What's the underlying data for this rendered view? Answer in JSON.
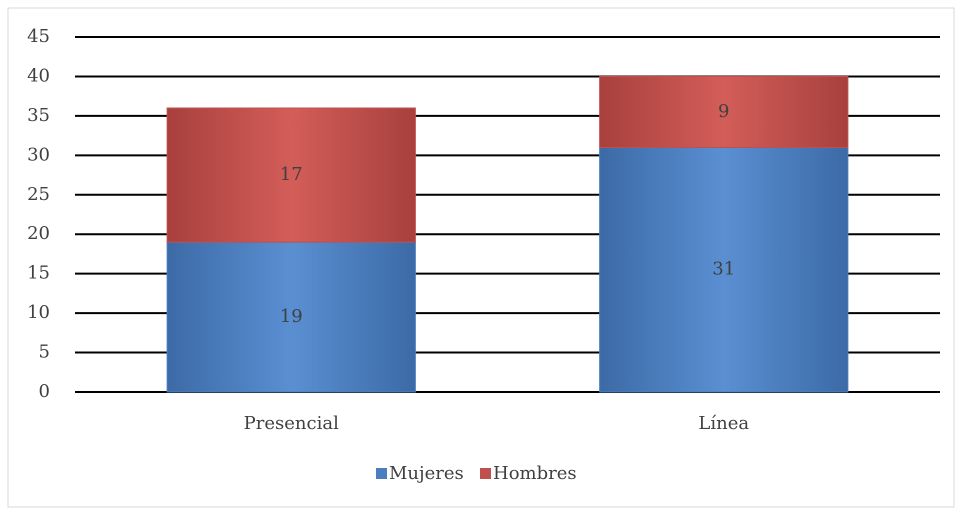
{
  "chart_data": {
    "type": "bar",
    "stacked": true,
    "categories": [
      "Presencial",
      "Línea"
    ],
    "series": [
      {
        "name": "Mujeres",
        "color": "#4a7ebf",
        "values": [
          19,
          31
        ]
      },
      {
        "name": "Hombres",
        "color": "#c0504d",
        "values": [
          17,
          9
        ]
      }
    ],
    "ylim": [
      0,
      45
    ],
    "yticks": [
      0,
      5,
      10,
      15,
      20,
      25,
      30,
      35,
      40,
      45
    ],
    "grid": true,
    "legend": "bottom"
  }
}
